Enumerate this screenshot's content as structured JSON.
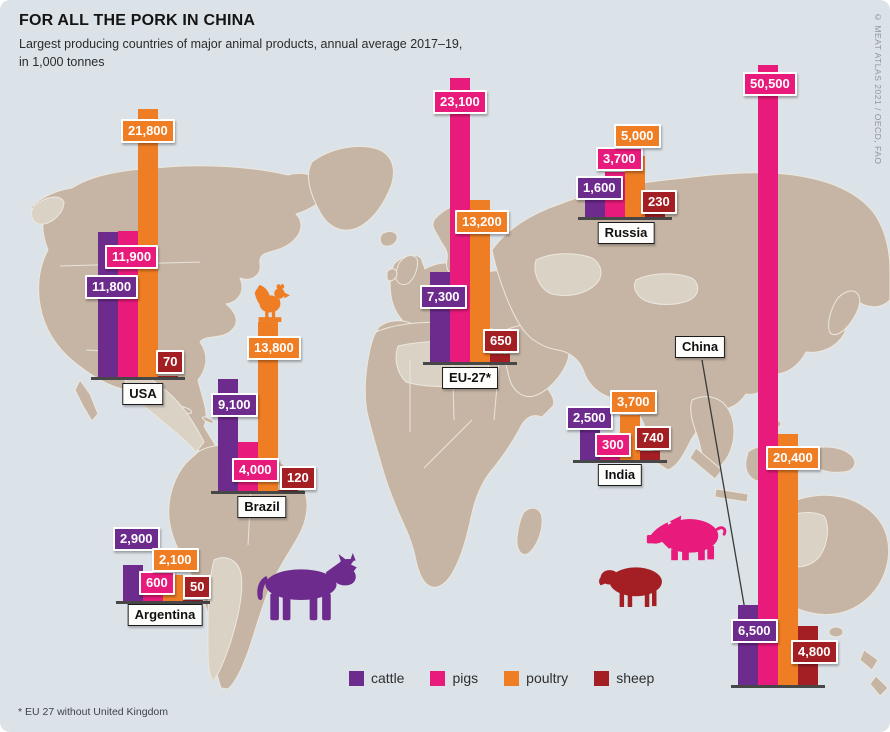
{
  "header": {
    "title": "FOR ALL THE PORK IN CHINA",
    "subtitle_line1": "Largest producing countries of major animal products, annual average 2017–19,",
    "subtitle_line2": "in 1,000 tonnes"
  },
  "footnote": "* EU 27 without United Kingdom",
  "credit": "© MEAT ATLAS 2021 / OECD, FAO",
  "colors": {
    "cattle": "#6e2b8e",
    "pigs": "#e81a7b",
    "poultry": "#ee7d24",
    "sheep": "#a31f24",
    "ocean": "#dce3e8",
    "land": "#c6b5a4",
    "land_light": "#dbd2c6",
    "baseline": "#474747"
  },
  "legend": [
    {
      "key": "cattle",
      "label": "cattle"
    },
    {
      "key": "pigs",
      "label": "pigs"
    },
    {
      "key": "poultry",
      "label": "poultry"
    },
    {
      "key": "sheep",
      "label": "sheep"
    }
  ],
  "chart_data": {
    "type": "bar",
    "title": "FOR ALL THE PORK IN CHINA",
    "subtitle": "Largest producing countries of major animal products, annual average 2017–19, in 1,000 tonnes",
    "unit": "1,000 tonnes",
    "layout_hint": "grouped vertical bars placed on a world map at each producing country's location; shared linear scale across all groups; legend bottom-center",
    "categories": [
      "cattle",
      "pigs",
      "poultry",
      "sheep"
    ],
    "countries": [
      {
        "name": "USA",
        "values": {
          "cattle": 11800,
          "pigs": 11900,
          "poultry": 21800,
          "sheep": 70
        }
      },
      {
        "name": "Brazil",
        "values": {
          "cattle": 9100,
          "pigs": 4000,
          "poultry": 13800,
          "sheep": 120
        }
      },
      {
        "name": "Argentina",
        "values": {
          "cattle": 2900,
          "pigs": 600,
          "poultry": 2100,
          "sheep": 50
        }
      },
      {
        "name": "EU-27*",
        "values": {
          "cattle": 7300,
          "pigs": 23100,
          "poultry": 13200,
          "sheep": 650
        }
      },
      {
        "name": "Russia",
        "values": {
          "cattle": 1600,
          "pigs": 3700,
          "poultry": 5000,
          "sheep": 230
        }
      },
      {
        "name": "India",
        "values": {
          "cattle": 2500,
          "pigs": 300,
          "poultry": 3700,
          "sheep": 740
        }
      },
      {
        "name": "China",
        "values": {
          "cattle": 6500,
          "pigs": 50500,
          "poultry": 20400,
          "sheep": 4800
        }
      }
    ],
    "footnote": "* EU 27 without United Kingdom",
    "source": "© MEAT ATLAS 2021 / OECD, FAO"
  }
}
